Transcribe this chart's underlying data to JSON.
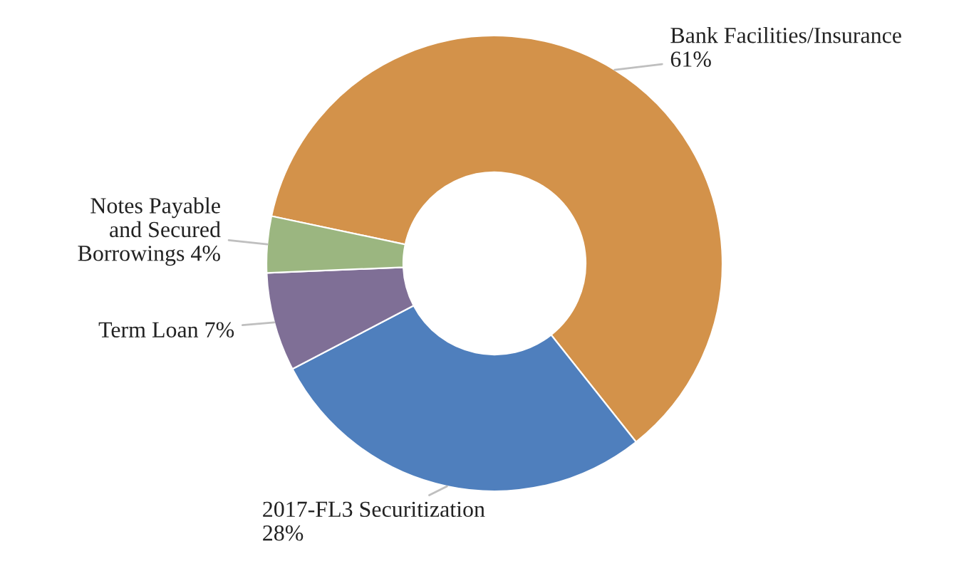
{
  "chart_data": {
    "type": "donut",
    "categories": [
      "Bank Facilities/Insurance",
      "2017-FL3 Securitization",
      "Term Loan",
      "Notes Payable\nand Secured\nBorrowings"
    ],
    "values": [
      61,
      28,
      7,
      4
    ],
    "value_labels": [
      "61%",
      "28%",
      "7%",
      "4%"
    ],
    "colors": [
      "#d3924a",
      "#4f7fbd",
      "#7f6f96",
      "#9bb680"
    ],
    "legend": false
  }
}
